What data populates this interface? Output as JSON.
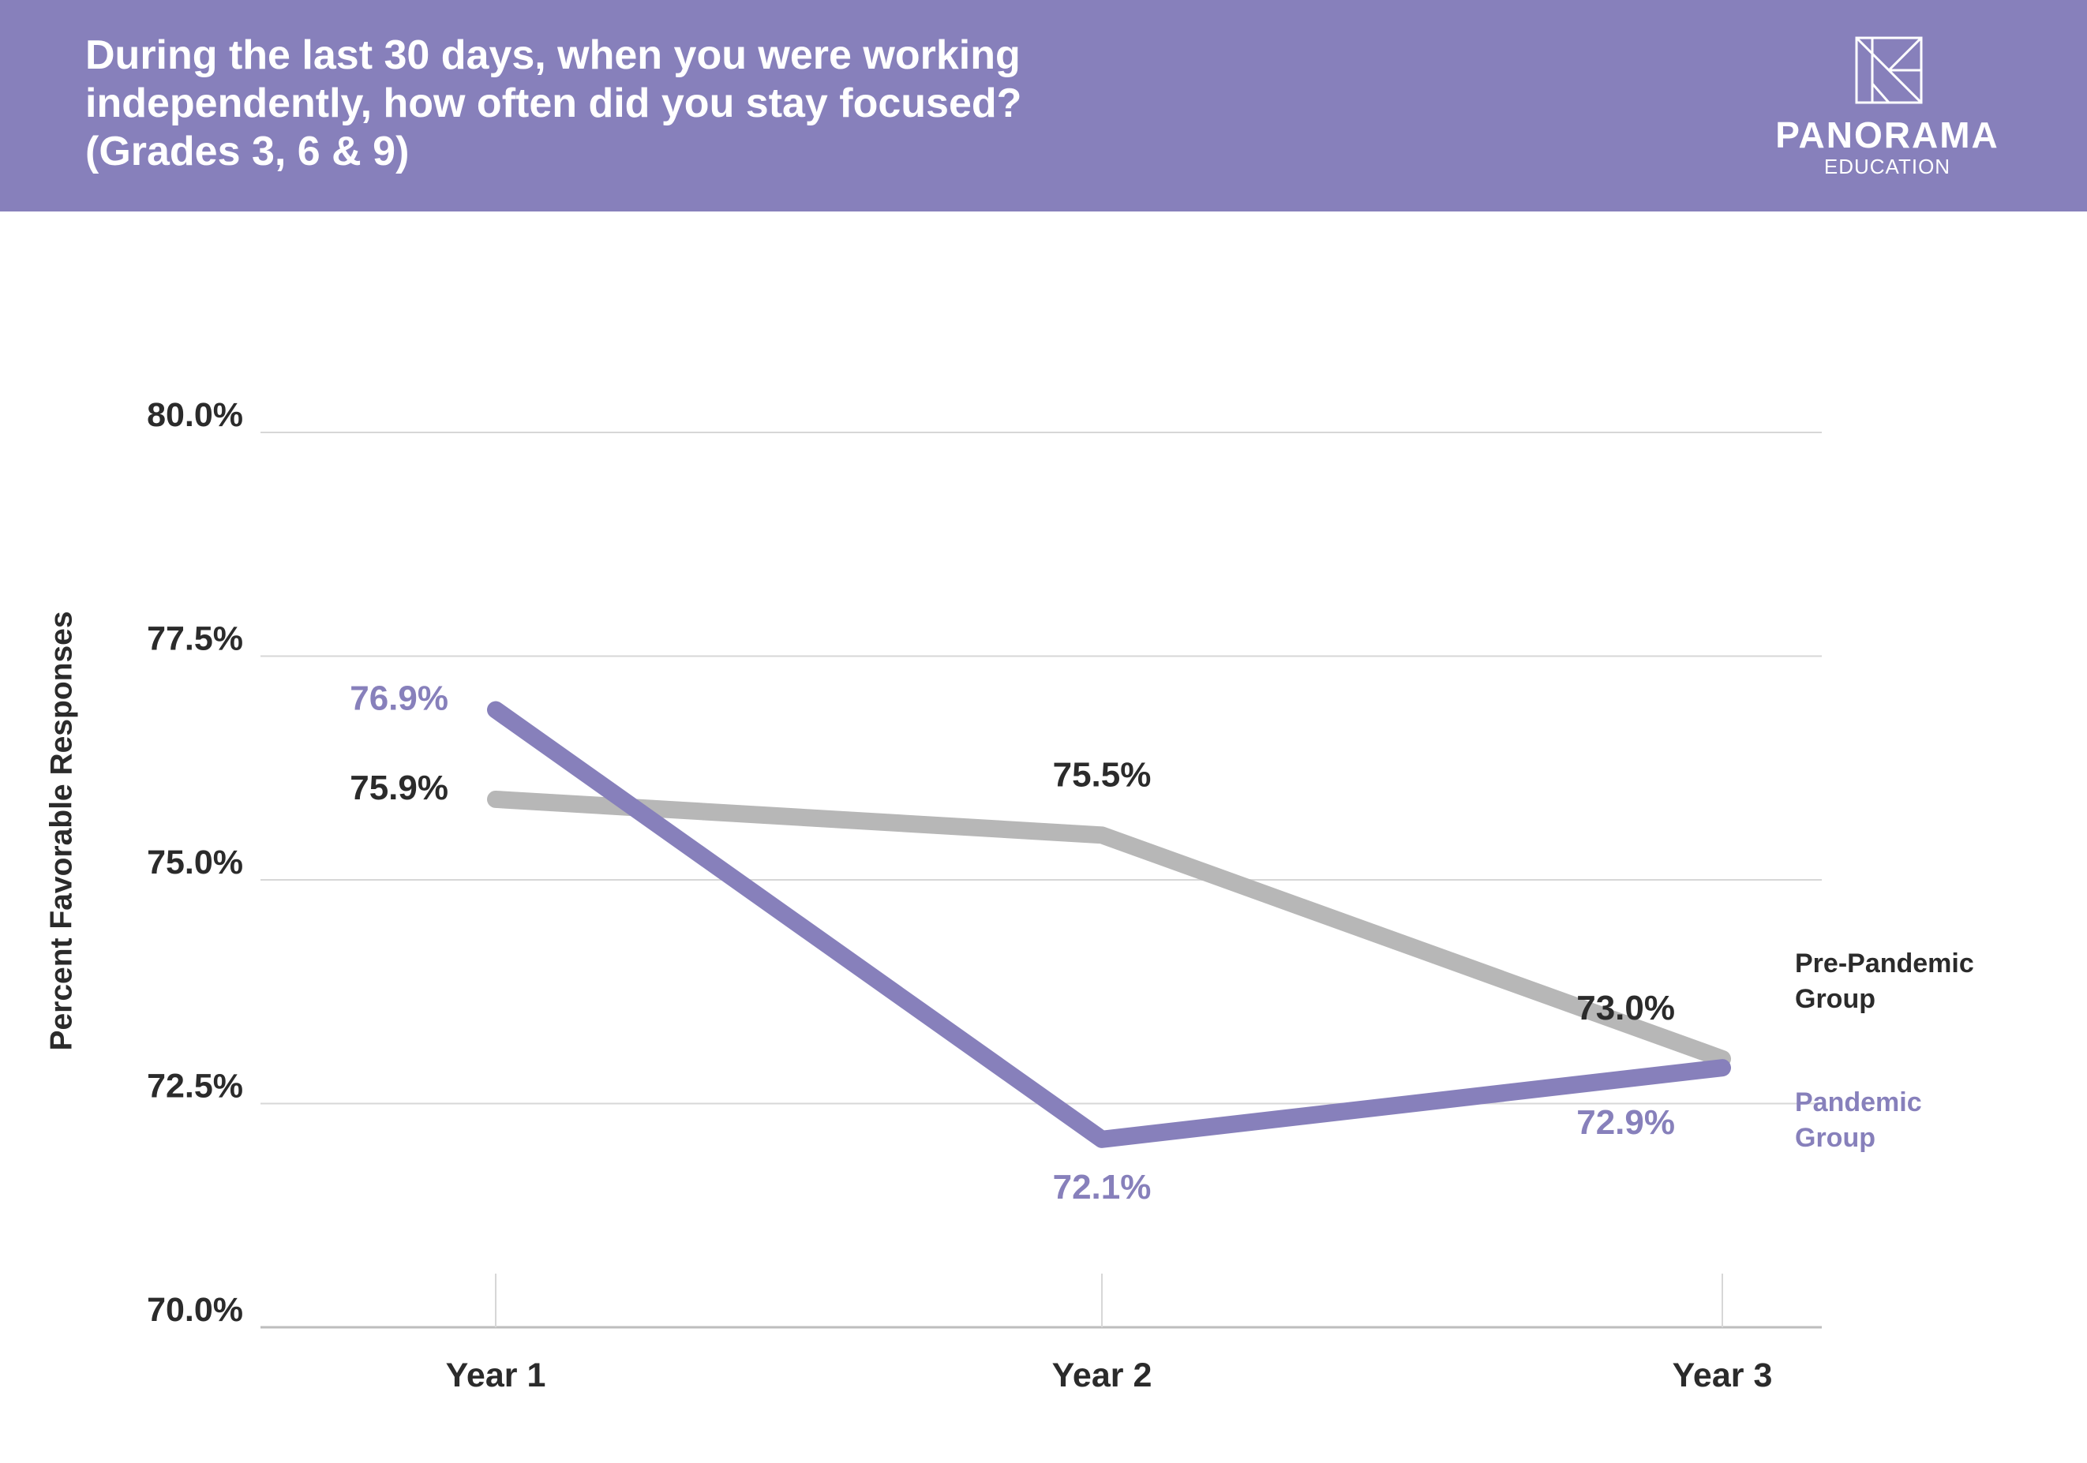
{
  "header": {
    "title_lines": [
      "During the last 30 days, when you were working",
      "independently, how often did you stay focused?",
      "(Grades 3, 6 & 9)"
    ],
    "logo": {
      "wordmark": "PANORAMA",
      "subtext": "EDUCATION"
    }
  },
  "colors": {
    "header_bg": "#8780bb",
    "pandemic": "#8780bb",
    "pre_pandemic": "#b7b7b7",
    "text_dark": "#2b2b2b",
    "grid": "#d7d7d7"
  },
  "chart_data": {
    "type": "line",
    "title": "During the last 30 days, when you were working independently, how often did you stay focused? (Grades 3, 6 & 9)",
    "xlabel": "",
    "ylabel": "Percent Favorable Responses",
    "categories": [
      "Year 1",
      "Year 2",
      "Year 3"
    ],
    "ylim": [
      70.0,
      80.0
    ],
    "yticks": [
      80.0,
      77.5,
      75.0,
      72.5,
      70.0
    ],
    "ytick_labels": [
      "80.0%",
      "77.5%",
      "75.0%",
      "72.5%",
      "70.0%"
    ],
    "grid": true,
    "series": [
      {
        "name": "Pre-Pandemic Group",
        "label_lines": [
          "Pre-Pandemic",
          "Group"
        ],
        "color": "#b7b7b7",
        "values": [
          75.9,
          75.5,
          73.0
        ],
        "data_labels": [
          "75.9%",
          "75.5%",
          "73.0%"
        ]
      },
      {
        "name": "Pandemic Group",
        "label_lines": [
          "Pandemic",
          "Group"
        ],
        "color": "#8780bb",
        "values": [
          76.9,
          72.1,
          72.9
        ],
        "data_labels": [
          "76.9%",
          "72.1%",
          "72.9%"
        ]
      }
    ]
  }
}
